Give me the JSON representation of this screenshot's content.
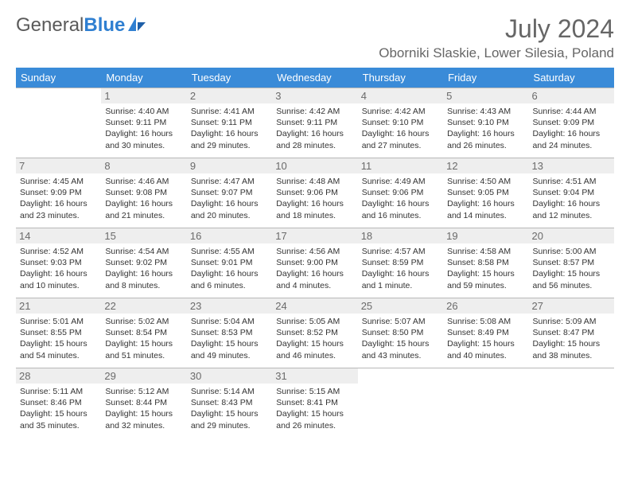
{
  "brand": {
    "part1": "General",
    "part2": "Blue"
  },
  "title": "July 2024",
  "location": "Oborniki Slaskie, Lower Silesia, Poland",
  "header_bg": "#3a8bd8",
  "daynum_bg": "#eeeeee",
  "border_color": "#b8b8b8",
  "dow": [
    "Sunday",
    "Monday",
    "Tuesday",
    "Wednesday",
    "Thursday",
    "Friday",
    "Saturday"
  ],
  "weeks": [
    [
      null,
      {
        "n": "1",
        "sr": "4:40 AM",
        "ss": "9:11 PM",
        "dl": "16 hours and 30 minutes."
      },
      {
        "n": "2",
        "sr": "4:41 AM",
        "ss": "9:11 PM",
        "dl": "16 hours and 29 minutes."
      },
      {
        "n": "3",
        "sr": "4:42 AM",
        "ss": "9:11 PM",
        "dl": "16 hours and 28 minutes."
      },
      {
        "n": "4",
        "sr": "4:42 AM",
        "ss": "9:10 PM",
        "dl": "16 hours and 27 minutes."
      },
      {
        "n": "5",
        "sr": "4:43 AM",
        "ss": "9:10 PM",
        "dl": "16 hours and 26 minutes."
      },
      {
        "n": "6",
        "sr": "4:44 AM",
        "ss": "9:09 PM",
        "dl": "16 hours and 24 minutes."
      }
    ],
    [
      {
        "n": "7",
        "sr": "4:45 AM",
        "ss": "9:09 PM",
        "dl": "16 hours and 23 minutes."
      },
      {
        "n": "8",
        "sr": "4:46 AM",
        "ss": "9:08 PM",
        "dl": "16 hours and 21 minutes."
      },
      {
        "n": "9",
        "sr": "4:47 AM",
        "ss": "9:07 PM",
        "dl": "16 hours and 20 minutes."
      },
      {
        "n": "10",
        "sr": "4:48 AM",
        "ss": "9:06 PM",
        "dl": "16 hours and 18 minutes."
      },
      {
        "n": "11",
        "sr": "4:49 AM",
        "ss": "9:06 PM",
        "dl": "16 hours and 16 minutes."
      },
      {
        "n": "12",
        "sr": "4:50 AM",
        "ss": "9:05 PM",
        "dl": "16 hours and 14 minutes."
      },
      {
        "n": "13",
        "sr": "4:51 AM",
        "ss": "9:04 PM",
        "dl": "16 hours and 12 minutes."
      }
    ],
    [
      {
        "n": "14",
        "sr": "4:52 AM",
        "ss": "9:03 PM",
        "dl": "16 hours and 10 minutes."
      },
      {
        "n": "15",
        "sr": "4:54 AM",
        "ss": "9:02 PM",
        "dl": "16 hours and 8 minutes."
      },
      {
        "n": "16",
        "sr": "4:55 AM",
        "ss": "9:01 PM",
        "dl": "16 hours and 6 minutes."
      },
      {
        "n": "17",
        "sr": "4:56 AM",
        "ss": "9:00 PM",
        "dl": "16 hours and 4 minutes."
      },
      {
        "n": "18",
        "sr": "4:57 AM",
        "ss": "8:59 PM",
        "dl": "16 hours and 1 minute."
      },
      {
        "n": "19",
        "sr": "4:58 AM",
        "ss": "8:58 PM",
        "dl": "15 hours and 59 minutes."
      },
      {
        "n": "20",
        "sr": "5:00 AM",
        "ss": "8:57 PM",
        "dl": "15 hours and 56 minutes."
      }
    ],
    [
      {
        "n": "21",
        "sr": "5:01 AM",
        "ss": "8:55 PM",
        "dl": "15 hours and 54 minutes."
      },
      {
        "n": "22",
        "sr": "5:02 AM",
        "ss": "8:54 PM",
        "dl": "15 hours and 51 minutes."
      },
      {
        "n": "23",
        "sr": "5:04 AM",
        "ss": "8:53 PM",
        "dl": "15 hours and 49 minutes."
      },
      {
        "n": "24",
        "sr": "5:05 AM",
        "ss": "8:52 PM",
        "dl": "15 hours and 46 minutes."
      },
      {
        "n": "25",
        "sr": "5:07 AM",
        "ss": "8:50 PM",
        "dl": "15 hours and 43 minutes."
      },
      {
        "n": "26",
        "sr": "5:08 AM",
        "ss": "8:49 PM",
        "dl": "15 hours and 40 minutes."
      },
      {
        "n": "27",
        "sr": "5:09 AM",
        "ss": "8:47 PM",
        "dl": "15 hours and 38 minutes."
      }
    ],
    [
      {
        "n": "28",
        "sr": "5:11 AM",
        "ss": "8:46 PM",
        "dl": "15 hours and 35 minutes."
      },
      {
        "n": "29",
        "sr": "5:12 AM",
        "ss": "8:44 PM",
        "dl": "15 hours and 32 minutes."
      },
      {
        "n": "30",
        "sr": "5:14 AM",
        "ss": "8:43 PM",
        "dl": "15 hours and 29 minutes."
      },
      {
        "n": "31",
        "sr": "5:15 AM",
        "ss": "8:41 PM",
        "dl": "15 hours and 26 minutes."
      },
      null,
      null,
      null
    ]
  ]
}
